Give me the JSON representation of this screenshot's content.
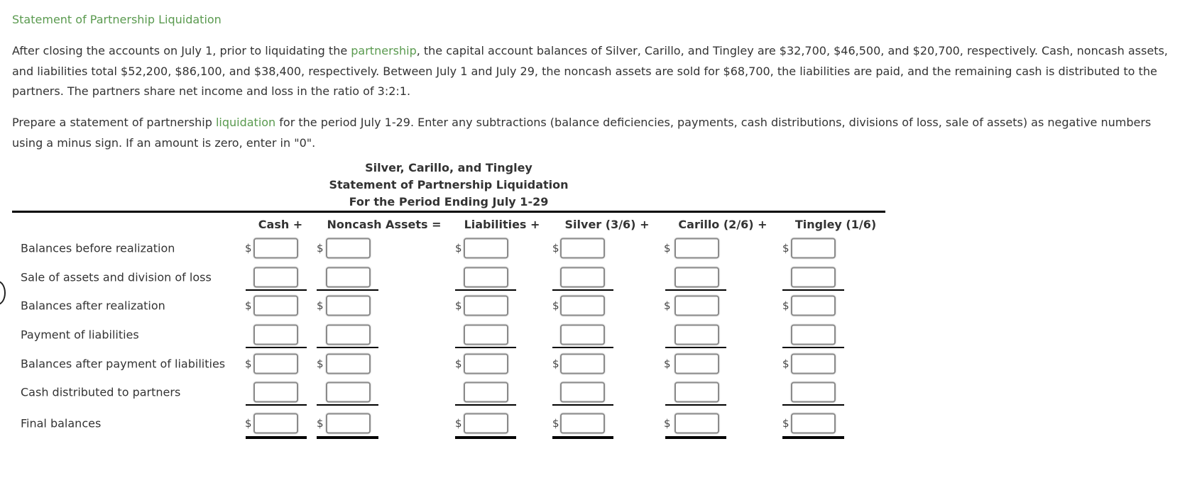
{
  "title": "Statement of Partnership Liquidation",
  "para1": {
    "before_link": "After closing the accounts on July 1, prior to liquidating the ",
    "link": "partnership",
    "after_link": ", the capital account balances of Silver, Carillo, and Tingley are $32,700, $46,500, and $20,700, respectively. Cash, noncash assets, and liabilities total $52,200, $86,100, and $38,400, respectively. Between July 1 and July 29, the noncash assets are sold for $68,700, the liabilities are paid, and the remaining cash is distributed to the partners. The partners share net income and loss in the ratio of 3:2:1."
  },
  "para2": {
    "before_link": "Prepare a statement of partnership ",
    "link": "liquidation",
    "after_link": " for the period July 1-29. Enter any subtractions (balance deficiencies, payments, cash distributions, divisions of loss, sale of assets) as negative numbers using a minus sign. If an amount is zero, enter in \"0\"."
  },
  "statement": {
    "company": "Silver, Carillo, and Tingley",
    "name": "Statement of Partnership Liquidation",
    "period": "For the Period Ending July 1-29",
    "columns": [
      "Cash +",
      "Noncash Assets =",
      "Liabilities +",
      "Silver (3/6) +",
      "Carillo (2/6) +",
      "Tingley (1/6)"
    ],
    "currency_symbol": "$",
    "rows": [
      {
        "label": "Balances before realization",
        "dollar": true
      },
      {
        "label": "Sale of assets and division of loss",
        "dollar": false
      },
      {
        "label": "Balances after realization",
        "dollar": true
      },
      {
        "label": "Payment of liabilities",
        "dollar": false
      },
      {
        "label": "Balances after payment of liabilities",
        "dollar": true
      },
      {
        "label": "Cash distributed to partners",
        "dollar": false
      },
      {
        "label": "Final balances",
        "dollar": true
      }
    ]
  }
}
